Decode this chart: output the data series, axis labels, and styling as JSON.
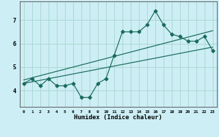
{
  "xlabel": "Humidex (Indice chaleur)",
  "ylabel": "",
  "background_color": "#cdeef5",
  "grid_color": "#a8d8d0",
  "line_color": "#1a6b5a",
  "x_ticks": [
    0,
    1,
    2,
    3,
    4,
    5,
    6,
    7,
    8,
    9,
    10,
    11,
    12,
    13,
    14,
    15,
    16,
    17,
    18,
    19,
    20,
    21,
    22,
    23
  ],
  "y_ticks": [
    4,
    5,
    6,
    7
  ],
  "ylim": [
    3.3,
    7.8
  ],
  "xlim": [
    -0.5,
    23.5
  ],
  "series1_x": [
    0,
    1,
    2,
    3,
    4,
    5,
    6,
    7,
    8,
    9,
    10,
    11,
    12,
    13,
    14,
    15,
    16,
    17,
    18,
    19,
    20,
    21,
    22,
    23
  ],
  "series1_y": [
    4.3,
    4.5,
    4.2,
    4.5,
    4.2,
    4.2,
    4.3,
    3.7,
    3.7,
    4.3,
    4.5,
    5.5,
    6.5,
    6.5,
    6.5,
    6.8,
    7.4,
    6.8,
    6.4,
    6.3,
    6.1,
    6.1,
    6.3,
    5.7
  ],
  "series2_x": [
    0,
    23
  ],
  "series2_y": [
    4.3,
    5.85
  ],
  "series3_x": [
    0,
    23
  ],
  "series3_y": [
    4.45,
    6.55
  ],
  "marker_size": 2.5,
  "line_width": 0.9
}
